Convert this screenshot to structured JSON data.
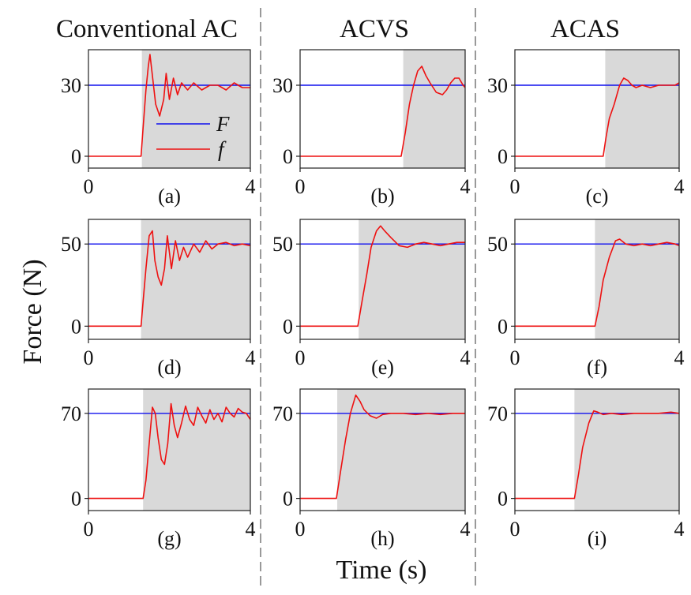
{
  "figure": {
    "column_titles": [
      "Conventional AC",
      "ACVS",
      "ACAS"
    ],
    "xlabel": "Time (s)",
    "ylabel": "Force (N)",
    "legend": [
      "F",
      "f"
    ],
    "colors": {
      "F": "#1010ee",
      "f": "#ee1111",
      "contact_shade": "#d9d9d9"
    }
  },
  "chart_data": [
    {
      "type": "line",
      "panel_label": "(a)",
      "column": "Conventional AC",
      "xlim": [
        0,
        4
      ],
      "xticks": [
        0,
        4
      ],
      "yticks": [
        0,
        30
      ],
      "ylim": [
        -5,
        45
      ],
      "reference": 30,
      "contact_time": 1.32,
      "series": [
        {
          "name": "F",
          "x": [
            0,
            4
          ],
          "y": [
            30,
            30
          ]
        },
        {
          "name": "f",
          "x": [
            0,
            1.3,
            1.35,
            1.42,
            1.48,
            1.52,
            1.58,
            1.66,
            1.76,
            1.86,
            1.92,
            2.0,
            2.1,
            2.2,
            2.3,
            2.45,
            2.6,
            2.8,
            3.0,
            3.2,
            3.4,
            3.6,
            3.8,
            4.0
          ],
          "y": [
            0,
            0,
            12,
            28,
            38,
            43,
            34,
            22,
            17,
            24,
            35,
            24,
            33,
            26,
            31,
            28,
            31,
            28,
            30,
            30,
            28,
            31,
            29,
            29
          ]
        }
      ]
    },
    {
      "type": "line",
      "panel_label": "(b)",
      "column": "ACVS",
      "xlim": [
        0,
        4
      ],
      "xticks": [
        0,
        4
      ],
      "yticks": [
        0,
        30
      ],
      "ylim": [
        -5,
        45
      ],
      "reference": 30,
      "contact_time": 2.5,
      "series": [
        {
          "name": "F",
          "x": [
            0,
            4
          ],
          "y": [
            30,
            30
          ]
        },
        {
          "name": "f",
          "x": [
            0,
            2.45,
            2.55,
            2.65,
            2.75,
            2.85,
            2.95,
            3.05,
            3.15,
            3.3,
            3.45,
            3.55,
            3.65,
            3.75,
            3.85,
            3.95,
            4.0
          ],
          "y": [
            0,
            0,
            10,
            22,
            30,
            36,
            38,
            34,
            31,
            27,
            26,
            28,
            31,
            33,
            33,
            30,
            29
          ]
        }
      ]
    },
    {
      "type": "line",
      "panel_label": "(c)",
      "column": "ACAS",
      "xlim": [
        0,
        4
      ],
      "xticks": [
        0,
        4
      ],
      "yticks": [
        0,
        30
      ],
      "ylim": [
        -5,
        45
      ],
      "reference": 30,
      "contact_time": 2.2,
      "series": [
        {
          "name": "F",
          "x": [
            0,
            4
          ],
          "y": [
            30,
            30
          ]
        },
        {
          "name": "f",
          "x": [
            0,
            2.15,
            2.22,
            2.3,
            2.42,
            2.55,
            2.65,
            2.75,
            2.85,
            2.95,
            3.1,
            3.3,
            3.5,
            3.7,
            3.9,
            4.0
          ],
          "y": [
            0,
            0,
            8,
            16,
            22,
            30,
            33,
            32,
            30,
            29,
            30,
            29,
            30,
            30,
            30,
            31
          ]
        }
      ]
    },
    {
      "type": "line",
      "panel_label": "(d)",
      "column": "Conventional AC",
      "xlim": [
        0,
        4
      ],
      "xticks": [
        0,
        4
      ],
      "yticks": [
        0,
        50
      ],
      "ylim": [
        -8,
        65
      ],
      "reference": 50,
      "contact_time": 1.3,
      "series": [
        {
          "name": "F",
          "x": [
            0,
            4
          ],
          "y": [
            50,
            50
          ]
        },
        {
          "name": "f",
          "x": [
            0,
            1.3,
            1.35,
            1.42,
            1.5,
            1.58,
            1.64,
            1.72,
            1.8,
            1.88,
            1.95,
            2.05,
            2.15,
            2.25,
            2.35,
            2.45,
            2.6,
            2.75,
            2.9,
            3.05,
            3.2,
            3.4,
            3.6,
            3.8,
            4.0
          ],
          "y": [
            0,
            0,
            15,
            35,
            55,
            58,
            40,
            30,
            25,
            35,
            55,
            35,
            52,
            40,
            48,
            42,
            50,
            45,
            52,
            47,
            50,
            51,
            49,
            50,
            49
          ]
        }
      ]
    },
    {
      "type": "line",
      "panel_label": "(e)",
      "column": "ACVS",
      "xlim": [
        0,
        4
      ],
      "xticks": [
        0,
        4
      ],
      "yticks": [
        0,
        50
      ],
      "ylim": [
        -8,
        65
      ],
      "reference": 50,
      "contact_time": 1.42,
      "series": [
        {
          "name": "F",
          "x": [
            0,
            4
          ],
          "y": [
            50,
            50
          ]
        },
        {
          "name": "f",
          "x": [
            0,
            1.4,
            1.5,
            1.62,
            1.72,
            1.85,
            1.95,
            2.05,
            2.2,
            2.4,
            2.6,
            2.8,
            3.0,
            3.2,
            3.4,
            3.6,
            3.8,
            4.0
          ],
          "y": [
            0,
            0,
            15,
            32,
            48,
            58,
            61,
            58,
            54,
            49,
            48,
            50,
            51,
            50,
            49,
            50,
            51,
            51
          ]
        }
      ]
    },
    {
      "type": "line",
      "panel_label": "(f)",
      "column": "ACAS",
      "xlim": [
        0,
        4
      ],
      "xticks": [
        0,
        4
      ],
      "yticks": [
        0,
        50
      ],
      "ylim": [
        -8,
        65
      ],
      "reference": 50,
      "contact_time": 1.95,
      "series": [
        {
          "name": "F",
          "x": [
            0,
            4
          ],
          "y": [
            50,
            50
          ]
        },
        {
          "name": "f",
          "x": [
            0,
            1.95,
            2.05,
            2.15,
            2.3,
            2.45,
            2.55,
            2.7,
            2.9,
            3.1,
            3.3,
            3.5,
            3.7,
            3.9,
            4.0
          ],
          "y": [
            0,
            0,
            12,
            28,
            42,
            52,
            53,
            50,
            49,
            50,
            49,
            50,
            51,
            50,
            49
          ]
        }
      ]
    },
    {
      "type": "line",
      "panel_label": "(g)",
      "column": "Conventional AC",
      "xlim": [
        0,
        4
      ],
      "xticks": [
        0,
        4
      ],
      "yticks": [
        0,
        70
      ],
      "ylim": [
        -10,
        90
      ],
      "reference": 70,
      "contact_time": 1.35,
      "series": [
        {
          "name": "F",
          "x": [
            0,
            4
          ],
          "y": [
            70,
            70
          ]
        },
        {
          "name": "f",
          "x": [
            0,
            1.35,
            1.42,
            1.5,
            1.58,
            1.65,
            1.72,
            1.8,
            1.88,
            1.96,
            2.04,
            2.12,
            2.2,
            2.3,
            2.4,
            2.5,
            2.6,
            2.7,
            2.8,
            2.9,
            3.0,
            3.1,
            3.2,
            3.3,
            3.4,
            3.5,
            3.6,
            3.7,
            3.8,
            3.9,
            4.0
          ],
          "y": [
            0,
            0,
            15,
            45,
            75,
            70,
            50,
            32,
            28,
            45,
            78,
            60,
            50,
            62,
            76,
            65,
            60,
            75,
            68,
            62,
            73,
            65,
            70,
            63,
            75,
            70,
            67,
            74,
            71,
            70,
            65
          ]
        }
      ]
    },
    {
      "type": "line",
      "panel_label": "(h)",
      "column": "ACVS",
      "xlim": [
        0,
        4
      ],
      "xticks": [
        0,
        4
      ],
      "yticks": [
        0,
        70
      ],
      "ylim": [
        -10,
        90
      ],
      "reference": 70,
      "contact_time": 0.9,
      "series": [
        {
          "name": "F",
          "x": [
            0,
            4
          ],
          "y": [
            70,
            70
          ]
        },
        {
          "name": "f",
          "x": [
            0,
            0.88,
            0.98,
            1.1,
            1.22,
            1.35,
            1.45,
            1.55,
            1.7,
            1.85,
            2.0,
            2.2,
            2.5,
            2.8,
            3.1,
            3.4,
            3.7,
            4.0
          ],
          "y": [
            0,
            0,
            22,
            48,
            70,
            85,
            80,
            73,
            68,
            66,
            69,
            70,
            70,
            69,
            70,
            69,
            70,
            70
          ]
        }
      ]
    },
    {
      "type": "line",
      "panel_label": "(i)",
      "column": "ACAS",
      "xlim": [
        0,
        4
      ],
      "xticks": [
        0,
        4
      ],
      "yticks": [
        0,
        70
      ],
      "ylim": [
        -10,
        90
      ],
      "reference": 70,
      "contact_time": 1.45,
      "series": [
        {
          "name": "F",
          "x": [
            0,
            4
          ],
          "y": [
            70,
            70
          ]
        },
        {
          "name": "f",
          "x": [
            0,
            1.45,
            1.55,
            1.65,
            1.8,
            1.92,
            2.02,
            2.15,
            2.35,
            2.6,
            2.9,
            3.2,
            3.5,
            3.8,
            4.0
          ],
          "y": [
            0,
            0,
            20,
            42,
            62,
            72,
            71,
            69,
            70,
            69,
            70,
            70,
            70,
            71,
            70
          ]
        }
      ]
    }
  ]
}
